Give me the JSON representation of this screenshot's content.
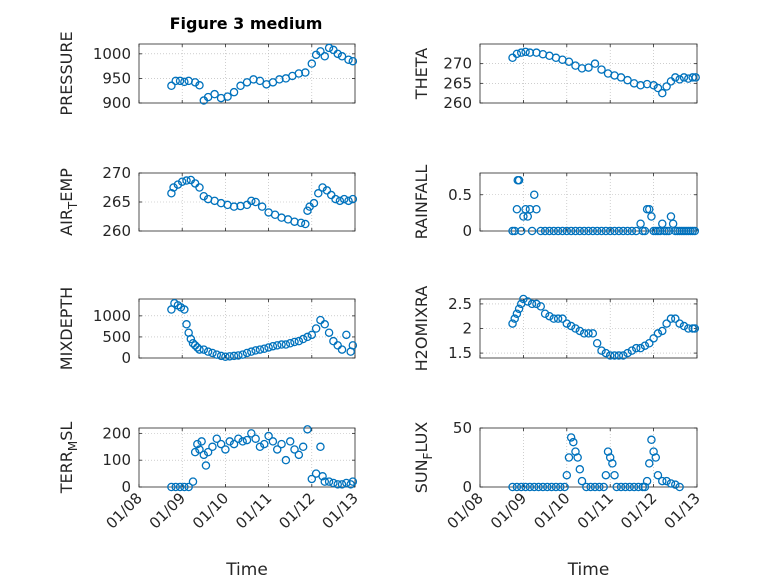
{
  "figure_title": "Figure 3 medium",
  "colors": {
    "marker": "#0072BD",
    "axis": "#262626",
    "grid": "#b0b0b0"
  },
  "chart_data": [
    {
      "id": "pressure",
      "type": "scatter",
      "ylabel": "PRESSURE",
      "ylim": [
        900,
        1020
      ],
      "yticks": [
        900,
        950,
        1000
      ],
      "ytick_labels": [
        "900",
        "950",
        "1000"
      ],
      "xlim": [
        0,
        5
      ],
      "x": [
        0.75,
        0.85,
        0.95,
        1.05,
        1.15,
        1.3,
        1.4,
        1.5,
        1.6,
        1.75,
        1.9,
        2.05,
        2.2,
        2.35,
        2.5,
        2.65,
        2.8,
        2.95,
        3.1,
        3.25,
        3.4,
        3.55,
        3.7,
        3.85,
        4.0,
        4.1,
        4.2,
        4.3,
        4.4,
        4.5,
        4.6,
        4.7,
        4.85,
        4.95
      ],
      "y": [
        935,
        945,
        945,
        943,
        945,
        942,
        936,
        905,
        912,
        918,
        910,
        913,
        922,
        935,
        942,
        948,
        945,
        938,
        942,
        948,
        950,
        955,
        960,
        962,
        980,
        998,
        1005,
        995,
        1012,
        1008,
        1000,
        995,
        988,
        985
      ]
    },
    {
      "id": "theta",
      "type": "scatter",
      "ylabel": "THETA",
      "ylim": [
        260,
        275
      ],
      "yticks": [
        260,
        265,
        270
      ],
      "ytick_labels": [
        "260",
        "265",
        "270"
      ],
      "xlim": [
        0,
        5
      ],
      "x": [
        0.75,
        0.85,
        0.95,
        1.05,
        1.15,
        1.3,
        1.45,
        1.6,
        1.75,
        1.9,
        2.05,
        2.2,
        2.35,
        2.5,
        2.65,
        2.8,
        2.95,
        3.1,
        3.25,
        3.4,
        3.55,
        3.7,
        3.85,
        4.0,
        4.1,
        4.2,
        4.3,
        4.4,
        4.5,
        4.6,
        4.7,
        4.8,
        4.9,
        4.97
      ],
      "y": [
        271.5,
        272.5,
        272.8,
        273,
        272.8,
        272.8,
        272.4,
        272,
        271.5,
        271,
        270.5,
        269.5,
        268.8,
        269,
        270,
        268.5,
        267.5,
        267,
        266.5,
        265.8,
        265,
        264.5,
        264.8,
        264.5,
        263.8,
        262.5,
        264.2,
        265.5,
        266.5,
        266,
        266.5,
        266.2,
        266.5,
        266.5
      ]
    },
    {
      "id": "air_temp",
      "type": "scatter",
      "ylabel": "AIR",
      "ylabel_sub": "T",
      "ylabel_end": "EMP",
      "ylim": [
        260,
        270
      ],
      "yticks": [
        260,
        265,
        270
      ],
      "ytick_labels": [
        "260",
        "265",
        "270"
      ],
      "xlim": [
        0,
        5
      ],
      "x": [
        0.75,
        0.8,
        0.9,
        1.0,
        1.1,
        1.2,
        1.3,
        1.4,
        1.5,
        1.6,
        1.75,
        1.9,
        2.05,
        2.2,
        2.35,
        2.5,
        2.6,
        2.7,
        2.85,
        3.0,
        3.15,
        3.3,
        3.45,
        3.6,
        3.75,
        3.85,
        3.9,
        3.95,
        4.05,
        4.15,
        4.25,
        4.35,
        4.45,
        4.55,
        4.65,
        4.75,
        4.85,
        4.95
      ],
      "y": [
        266.5,
        267.5,
        268,
        268.5,
        268.7,
        268.8,
        268.2,
        267.5,
        266,
        265.5,
        265.2,
        264.8,
        264.5,
        264.2,
        264.3,
        264.5,
        265.2,
        265,
        264.2,
        263.2,
        262.8,
        262.3,
        262,
        261.6,
        261.4,
        261.2,
        263.5,
        264.2,
        264.8,
        266.5,
        267.5,
        267,
        266.2,
        265.5,
        265.2,
        265.5,
        265.2,
        265.5
      ]
    },
    {
      "id": "rainfall",
      "type": "scatter",
      "ylabel": "RAINFALL",
      "ylim": [
        0,
        0.8
      ],
      "yticks": [
        0,
        0.5
      ],
      "ytick_labels": [
        "0",
        "0.5"
      ],
      "xlim": [
        0,
        5
      ],
      "x": [
        0.75,
        0.8,
        0.85,
        0.87,
        0.9,
        0.95,
        1.0,
        1.05,
        1.1,
        1.15,
        1.2,
        1.25,
        1.3,
        1.4,
        1.5,
        1.6,
        1.7,
        1.8,
        1.9,
        2.0,
        2.1,
        2.2,
        2.3,
        2.4,
        2.5,
        2.6,
        2.7,
        2.8,
        2.9,
        3.0,
        3.1,
        3.2,
        3.3,
        3.4,
        3.5,
        3.6,
        3.7,
        3.75,
        3.8,
        3.85,
        3.9,
        3.95,
        4.0,
        4.05,
        4.1,
        4.15,
        4.2,
        4.25,
        4.3,
        4.35,
        4.4,
        4.45,
        4.5,
        4.55,
        4.6,
        4.65,
        4.7,
        4.75,
        4.8,
        4.85,
        4.9,
        4.95
      ],
      "y": [
        0,
        0,
        0.3,
        0.7,
        0.7,
        0,
        0.2,
        0.3,
        0.2,
        0.3,
        0,
        0.5,
        0.3,
        0,
        0,
        0,
        0,
        0,
        0,
        0,
        0,
        0,
        0,
        0,
        0,
        0,
        0,
        0,
        0,
        0,
        0,
        0,
        0,
        0,
        0,
        0,
        0.1,
        0,
        0,
        0.3,
        0.3,
        0.2,
        0,
        0,
        0,
        0,
        0.1,
        0,
        0,
        0,
        0.2,
        0.1,
        0,
        0,
        0,
        0,
        0,
        0,
        0,
        0,
        0,
        0
      ]
    },
    {
      "id": "mixdepth",
      "type": "scatter",
      "ylabel": "MIXDEPTH",
      "ylim": [
        0,
        1400
      ],
      "yticks": [
        0,
        500,
        1000
      ],
      "ytick_labels": [
        "0",
        "500",
        "1000"
      ],
      "xlim": [
        0,
        5
      ],
      "x": [
        0.75,
        0.82,
        0.9,
        0.97,
        1.05,
        1.1,
        1.15,
        1.2,
        1.25,
        1.3,
        1.35,
        1.4,
        1.5,
        1.6,
        1.7,
        1.8,
        1.9,
        2.0,
        2.1,
        2.2,
        2.3,
        2.4,
        2.5,
        2.6,
        2.7,
        2.8,
        2.9,
        3.0,
        3.1,
        3.2,
        3.3,
        3.4,
        3.5,
        3.6,
        3.7,
        3.8,
        3.9,
        4.0,
        4.1,
        4.2,
        4.3,
        4.4,
        4.5,
        4.6,
        4.7,
        4.8,
        4.9,
        4.95
      ],
      "y": [
        1150,
        1300,
        1250,
        1200,
        1150,
        800,
        600,
        450,
        350,
        300,
        250,
        200,
        200,
        150,
        120,
        80,
        50,
        30,
        40,
        50,
        60,
        80,
        120,
        150,
        180,
        200,
        220,
        250,
        280,
        300,
        320,
        320,
        350,
        380,
        400,
        450,
        500,
        550,
        700,
        900,
        800,
        600,
        400,
        300,
        200,
        550,
        150,
        300
      ]
    },
    {
      "id": "h2omixra",
      "type": "scatter",
      "ylabel": "H2OMIXRA",
      "ylim": [
        1.4,
        2.6
      ],
      "yticks": [
        1.5,
        2,
        2.5
      ],
      "ytick_labels": [
        "1.5",
        "2",
        "2.5"
      ],
      "xlim": [
        0,
        5
      ],
      "x": [
        0.75,
        0.8,
        0.85,
        0.9,
        0.95,
        1.0,
        1.1,
        1.2,
        1.3,
        1.4,
        1.5,
        1.6,
        1.7,
        1.8,
        1.9,
        2.0,
        2.1,
        2.2,
        2.3,
        2.4,
        2.5,
        2.6,
        2.7,
        2.8,
        2.9,
        3.0,
        3.1,
        3.2,
        3.3,
        3.4,
        3.5,
        3.6,
        3.7,
        3.8,
        3.9,
        4.0,
        4.1,
        4.2,
        4.3,
        4.4,
        4.5,
        4.6,
        4.7,
        4.8,
        4.9,
        4.95
      ],
      "y": [
        2.1,
        2.2,
        2.3,
        2.4,
        2.5,
        2.6,
        2.55,
        2.5,
        2.5,
        2.45,
        2.3,
        2.25,
        2.2,
        2.2,
        2.2,
        2.1,
        2.05,
        2.0,
        1.95,
        1.9,
        1.9,
        1.9,
        1.7,
        1.55,
        1.5,
        1.45,
        1.45,
        1.45,
        1.45,
        1.5,
        1.55,
        1.6,
        1.6,
        1.65,
        1.7,
        1.8,
        1.9,
        1.95,
        2.1,
        2.2,
        2.2,
        2.1,
        2.05,
        2.0,
        2.0,
        2.0
      ]
    },
    {
      "id": "terr_msl",
      "type": "scatter",
      "ylabel": "TERR",
      "ylabel_sub": "M",
      "ylabel_end": "SL",
      "ylim": [
        0,
        220
      ],
      "yticks": [
        0,
        100,
        200
      ],
      "ytick_labels": [
        "0",
        "100",
        "200"
      ],
      "xlim": [
        0,
        5
      ],
      "x": [
        0.75,
        0.85,
        0.95,
        1.05,
        1.15,
        1.25,
        1.3,
        1.35,
        1.4,
        1.45,
        1.5,
        1.55,
        1.6,
        1.7,
        1.8,
        1.9,
        2.0,
        2.1,
        2.2,
        2.3,
        2.4,
        2.5,
        2.6,
        2.7,
        2.8,
        2.9,
        3.0,
        3.1,
        3.2,
        3.3,
        3.4,
        3.5,
        3.6,
        3.7,
        3.8,
        3.9,
        4.0,
        4.1,
        4.2,
        4.25,
        4.3,
        4.4,
        4.5,
        4.6,
        4.7,
        4.8,
        4.9,
        4.95
      ],
      "y": [
        0,
        0,
        0,
        0,
        0,
        20,
        130,
        160,
        140,
        170,
        120,
        80,
        130,
        150,
        180,
        160,
        140,
        170,
        160,
        180,
        170,
        175,
        200,
        180,
        150,
        160,
        190,
        170,
        140,
        160,
        100,
        170,
        140,
        120,
        150,
        215,
        30,
        50,
        150,
        40,
        20,
        20,
        15,
        10,
        10,
        15,
        10,
        20
      ]
    },
    {
      "id": "sun_flux",
      "type": "scatter",
      "ylabel": "SUN",
      "ylabel_sub": "F",
      "ylabel_end": "LUX",
      "ylim": [
        0,
        50
      ],
      "yticks": [
        0,
        50
      ],
      "ytick_labels": [
        "0",
        "50"
      ],
      "xlim": [
        0,
        5
      ],
      "x": [
        0.75,
        0.85,
        0.95,
        1.05,
        1.15,
        1.25,
        1.35,
        1.45,
        1.55,
        1.65,
        1.75,
        1.85,
        1.95,
        2.0,
        2.05,
        2.1,
        2.15,
        2.2,
        2.25,
        2.3,
        2.35,
        2.45,
        2.55,
        2.65,
        2.75,
        2.85,
        2.9,
        2.95,
        3.0,
        3.05,
        3.1,
        3.15,
        3.25,
        3.35,
        3.45,
        3.55,
        3.65,
        3.75,
        3.8,
        3.85,
        3.9,
        3.95,
        4.0,
        4.05,
        4.1,
        4.2,
        4.3,
        4.4,
        4.5,
        4.6
      ],
      "y": [
        0,
        0,
        0,
        0,
        0,
        0,
        0,
        0,
        0,
        0,
        0,
        0,
        0,
        10,
        25,
        42,
        38,
        30,
        25,
        15,
        5,
        0,
        0,
        0,
        0,
        0,
        10,
        30,
        25,
        20,
        10,
        0,
        0,
        0,
        0,
        0,
        0,
        0,
        0,
        5,
        20,
        40,
        30,
        25,
        10,
        5,
        5,
        3,
        2,
        0
      ]
    }
  ],
  "x_axis": {
    "xlabel": "Time",
    "tick_values": [
      0,
      1,
      2,
      3,
      4,
      5
    ],
    "tick_labels": [
      "01/08",
      "01/09",
      "01/10",
      "01/11",
      "01/12",
      "01/13"
    ]
  }
}
